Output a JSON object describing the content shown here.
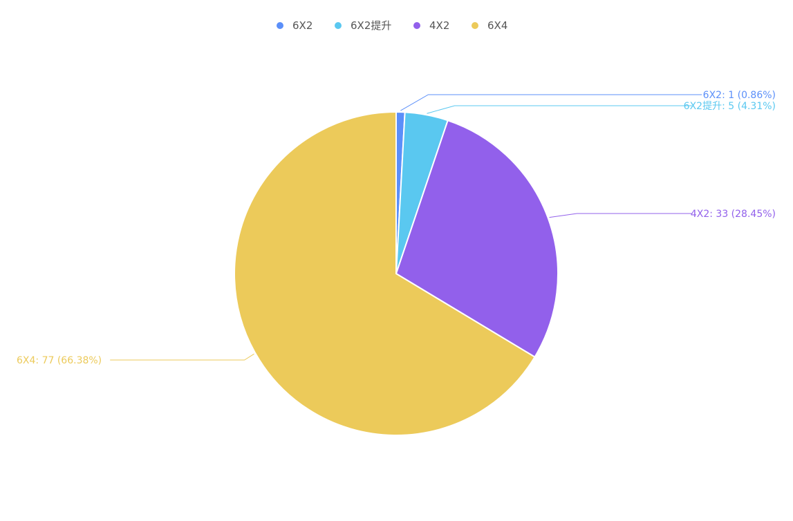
{
  "chart_data": {
    "type": "pie",
    "title": "",
    "legend": {
      "placement": "top-center"
    },
    "series": [
      {
        "name": "6X2",
        "value": 1,
        "percent": "0.86%",
        "color": "#5B8FF9",
        "label": "6X2: 1 (0.86%)"
      },
      {
        "name": "6X2提升",
        "value": 5,
        "percent": "4.31%",
        "color": "#5AC8F0",
        "label": "6X2提升: 5 (4.31%)"
      },
      {
        "name": "4X2",
        "value": 33,
        "percent": "28.45%",
        "color": "#9260EB",
        "label": "4X2: 33 (28.45%)"
      },
      {
        "name": "6X4",
        "value": 77,
        "percent": "66.38%",
        "color": "#ECCA5A",
        "label": "6X4: 77 (66.38%)"
      }
    ]
  }
}
